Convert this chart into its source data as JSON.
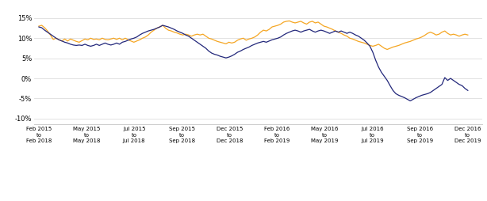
{
  "yticks": [
    -0.1,
    -0.05,
    0.0,
    0.05,
    0.1,
    0.15
  ],
  "ytick_labels": [
    "-10%",
    "-5%",
    "0%",
    "5%",
    "10%",
    "15%"
  ],
  "ylim": [
    -0.115,
    0.185
  ],
  "xtick_labels": [
    "Feb 2015\nto\nFeb 2018",
    "May 2015\nto\nMay 2018",
    "Jul 2015\nto\nJul 2018",
    "Sep 2015\nto\nSep 2018",
    "Dec 2015\nto\nDec 2018",
    "Feb 2016\nto\nFeb 2019",
    "May 2016\nto\nMay 2019",
    "Jul 2016\nto\nJul 2019",
    "Sep 2016\nto\nSep 2019",
    "Dec 2016\nto\nDec 2019"
  ],
  "color_nippon": "#F5A623",
  "color_bse": "#22277A",
  "background_color": "#FFFFFF",
  "grid_color": "#DDDDDD",
  "nippon_y": [
    0.13,
    0.132,
    0.126,
    0.118,
    0.108,
    0.097,
    0.1,
    0.096,
    0.093,
    0.098,
    0.093,
    0.098,
    0.095,
    0.092,
    0.09,
    0.094,
    0.098,
    0.096,
    0.1,
    0.097,
    0.098,
    0.096,
    0.1,
    0.097,
    0.096,
    0.098,
    0.1,
    0.097,
    0.1,
    0.096,
    0.1,
    0.096,
    0.093,
    0.09,
    0.093,
    0.096,
    0.1,
    0.103,
    0.108,
    0.115,
    0.12,
    0.125,
    0.128,
    0.132,
    0.125,
    0.12,
    0.118,
    0.115,
    0.113,
    0.11,
    0.108,
    0.11,
    0.108,
    0.105,
    0.108,
    0.11,
    0.108,
    0.11,
    0.105,
    0.1,
    0.098,
    0.095,
    0.092,
    0.09,
    0.088,
    0.086,
    0.09,
    0.088,
    0.09,
    0.095,
    0.098,
    0.1,
    0.095,
    0.098,
    0.1,
    0.103,
    0.108,
    0.115,
    0.12,
    0.118,
    0.122,
    0.128,
    0.13,
    0.132,
    0.135,
    0.14,
    0.142,
    0.143,
    0.14,
    0.138,
    0.14,
    0.142,
    0.138,
    0.135,
    0.14,
    0.142,
    0.138,
    0.14,
    0.135,
    0.13,
    0.128,
    0.125,
    0.122,
    0.118,
    0.115,
    0.112,
    0.108,
    0.105,
    0.1,
    0.098,
    0.095,
    0.092,
    0.09,
    0.088,
    0.085,
    0.082,
    0.08,
    0.082,
    0.085,
    0.08,
    0.075,
    0.072,
    0.075,
    0.078,
    0.08,
    0.082,
    0.085,
    0.088,
    0.09,
    0.092,
    0.095,
    0.098,
    0.1,
    0.103,
    0.107,
    0.112,
    0.115,
    0.112,
    0.108,
    0.11,
    0.115,
    0.118,
    0.112,
    0.108,
    0.11,
    0.108,
    0.105,
    0.108,
    0.11,
    0.108
  ],
  "bse_y": [
    0.128,
    0.126,
    0.12,
    0.115,
    0.11,
    0.105,
    0.1,
    0.096,
    0.093,
    0.09,
    0.088,
    0.085,
    0.083,
    0.082,
    0.083,
    0.082,
    0.085,
    0.082,
    0.08,
    0.082,
    0.085,
    0.082,
    0.085,
    0.088,
    0.085,
    0.083,
    0.085,
    0.088,
    0.085,
    0.09,
    0.092,
    0.095,
    0.098,
    0.1,
    0.103,
    0.108,
    0.112,
    0.115,
    0.118,
    0.12,
    0.122,
    0.125,
    0.128,
    0.132,
    0.13,
    0.128,
    0.125,
    0.122,
    0.118,
    0.115,
    0.112,
    0.108,
    0.105,
    0.1,
    0.095,
    0.09,
    0.085,
    0.08,
    0.075,
    0.068,
    0.063,
    0.06,
    0.058,
    0.055,
    0.053,
    0.051,
    0.053,
    0.056,
    0.06,
    0.065,
    0.068,
    0.072,
    0.075,
    0.078,
    0.082,
    0.085,
    0.088,
    0.09,
    0.092,
    0.09,
    0.093,
    0.096,
    0.098,
    0.1,
    0.103,
    0.108,
    0.112,
    0.115,
    0.118,
    0.12,
    0.118,
    0.115,
    0.118,
    0.12,
    0.122,
    0.118,
    0.115,
    0.118,
    0.12,
    0.118,
    0.115,
    0.112,
    0.115,
    0.118,
    0.115,
    0.118,
    0.115,
    0.112,
    0.115,
    0.112,
    0.108,
    0.105,
    0.1,
    0.095,
    0.088,
    0.08,
    0.065,
    0.045,
    0.028,
    0.015,
    0.005,
    -0.005,
    -0.018,
    -0.03,
    -0.038,
    -0.042,
    -0.045,
    -0.048,
    -0.052,
    -0.056,
    -0.052,
    -0.048,
    -0.045,
    -0.042,
    -0.04,
    -0.038,
    -0.035,
    -0.03,
    -0.025,
    -0.02,
    -0.015,
    0.002,
    -0.005,
    0.0,
    -0.005,
    -0.01,
    -0.015,
    -0.018,
    -0.025,
    -0.03
  ]
}
